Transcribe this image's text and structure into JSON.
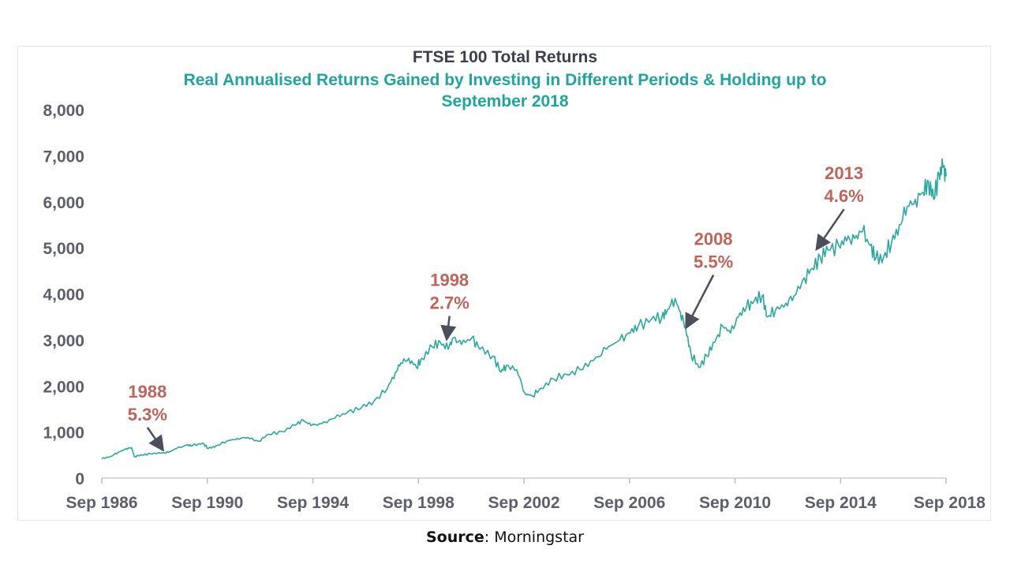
{
  "chart_data": {
    "type": "line",
    "title": "FTSE 100 Total Returns",
    "subtitle": "Real Annualised Returns Gained by Investing in Different Periods & Holding up to September 2018",
    "subtitle_lines": [
      "Real Annualised Returns Gained by Investing in Different Periods & Holding up to",
      "September 2018"
    ],
    "xlabel": "",
    "ylabel": "",
    "xlim": [
      1986.67,
      2018.67
    ],
    "ylim": [
      0,
      8000
    ],
    "grid": false,
    "line_color": "#2aa8a0",
    "x_tick_labels": [
      "Sep 1986",
      "Sep 1990",
      "Sep 1994",
      "Sep 1998",
      "Sep 2002",
      "Sep 2006",
      "Sep 2010",
      "Sep 2014",
      "Sep 2018"
    ],
    "x_tick_values": [
      1986.67,
      1990.67,
      1994.67,
      1998.67,
      2002.67,
      2006.67,
      2010.67,
      2014.67,
      2018.67
    ],
    "y_tick_labels": [
      "0",
      "1,000",
      "2,000",
      "3,000",
      "4,000",
      "5,000",
      "6,000",
      "7,000",
      "8,000"
    ],
    "y_tick_values": [
      0,
      1000,
      2000,
      3000,
      4000,
      5000,
      6000,
      7000,
      8000
    ],
    "series": [
      {
        "name": "FTSE 100 Total Returns",
        "points": [
          [
            1986.67,
            420
          ],
          [
            1987.0,
            470
          ],
          [
            1987.3,
            560
          ],
          [
            1987.6,
            640
          ],
          [
            1987.8,
            660
          ],
          [
            1987.9,
            470
          ],
          [
            1988.2,
            500
          ],
          [
            1988.5,
            530
          ],
          [
            1988.9,
            540
          ],
          [
            1989.2,
            560
          ],
          [
            1989.5,
            640
          ],
          [
            1989.9,
            720
          ],
          [
            1990.1,
            700
          ],
          [
            1990.5,
            760
          ],
          [
            1990.7,
            640
          ],
          [
            1991.0,
            700
          ],
          [
            1991.4,
            800
          ],
          [
            1991.8,
            860
          ],
          [
            1992.2,
            880
          ],
          [
            1992.6,
            800
          ],
          [
            1993.0,
            950
          ],
          [
            1993.5,
            1010
          ],
          [
            1994.0,
            1150
          ],
          [
            1994.3,
            1260
          ],
          [
            1994.6,
            1140
          ],
          [
            1995.0,
            1180
          ],
          [
            1995.5,
            1300
          ],
          [
            1996.0,
            1440
          ],
          [
            1996.5,
            1520
          ],
          [
            1997.0,
            1680
          ],
          [
            1997.5,
            1950
          ],
          [
            1997.8,
            2300
          ],
          [
            1998.0,
            2500
          ],
          [
            1998.3,
            2600
          ],
          [
            1998.6,
            2400
          ],
          [
            1998.8,
            2600
          ],
          [
            1999.2,
            2850
          ],
          [
            1999.5,
            2950
          ],
          [
            1999.8,
            2800
          ],
          [
            2000.0,
            3050
          ],
          [
            2000.3,
            2900
          ],
          [
            2000.7,
            3050
          ],
          [
            2001.0,
            2800
          ],
          [
            2001.5,
            2650
          ],
          [
            2001.8,
            2300
          ],
          [
            2002.0,
            2450
          ],
          [
            2002.4,
            2350
          ],
          [
            2002.7,
            1850
          ],
          [
            2003.0,
            1780
          ],
          [
            2003.3,
            1950
          ],
          [
            2003.8,
            2150
          ],
          [
            2004.3,
            2250
          ],
          [
            2004.8,
            2350
          ],
          [
            2005.3,
            2550
          ],
          [
            2005.8,
            2800
          ],
          [
            2006.3,
            3000
          ],
          [
            2006.7,
            3150
          ],
          [
            2007.0,
            3300
          ],
          [
            2007.5,
            3450
          ],
          [
            2007.9,
            3500
          ],
          [
            2008.1,
            3650
          ],
          [
            2008.4,
            3900
          ],
          [
            2008.6,
            3600
          ],
          [
            2008.8,
            3250
          ],
          [
            2009.0,
            2700
          ],
          [
            2009.3,
            2400
          ],
          [
            2009.6,
            2650
          ],
          [
            2009.9,
            2950
          ],
          [
            2010.2,
            3300
          ],
          [
            2010.5,
            3150
          ],
          [
            2010.8,
            3500
          ],
          [
            2011.1,
            3700
          ],
          [
            2011.4,
            3850
          ],
          [
            2011.7,
            3950
          ],
          [
            2011.9,
            3500
          ],
          [
            2012.2,
            3650
          ],
          [
            2012.6,
            3800
          ],
          [
            2012.9,
            3950
          ],
          [
            2013.3,
            4350
          ],
          [
            2013.6,
            4550
          ],
          [
            2013.9,
            4800
          ],
          [
            2014.2,
            4950
          ],
          [
            2014.6,
            5050
          ],
          [
            2014.9,
            5150
          ],
          [
            2015.2,
            5200
          ],
          [
            2015.5,
            5350
          ],
          [
            2015.8,
            5050
          ],
          [
            2016.0,
            4750
          ],
          [
            2016.3,
            4800
          ],
          [
            2016.6,
            5100
          ],
          [
            2016.9,
            5500
          ],
          [
            2017.2,
            5900
          ],
          [
            2017.5,
            6050
          ],
          [
            2017.8,
            6200
          ],
          [
            2018.0,
            6450
          ],
          [
            2018.2,
            6050
          ],
          [
            2018.4,
            6600
          ],
          [
            2018.55,
            6750
          ],
          [
            2018.67,
            6550
          ]
        ]
      }
    ],
    "annotations": [
      {
        "year_label": "1988",
        "return_label": "5.3%",
        "target": [
          1988.95,
          540
        ],
        "label_anchor": [
          1988.4,
          1750
        ]
      },
      {
        "year_label": "1998",
        "return_label": "2.7%",
        "target": [
          1999.75,
          2950
        ],
        "label_anchor": [
          1999.85,
          4170
        ]
      },
      {
        "year_label": "2008",
        "return_label": "5.5%",
        "target": [
          2008.85,
          3200
        ],
        "label_anchor": [
          2009.85,
          5060
        ]
      },
      {
        "year_label": "2013",
        "return_label": "4.6%",
        "target": [
          2013.8,
          4900
        ],
        "label_anchor": [
          2014.8,
          6490
        ]
      }
    ]
  },
  "source": {
    "label": "Source",
    "text": "Morningstar"
  }
}
